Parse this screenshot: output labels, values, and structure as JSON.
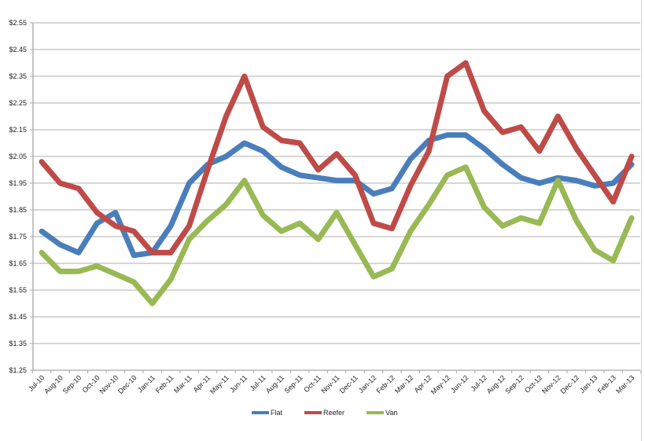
{
  "chart_data": {
    "type": "line",
    "title": "",
    "xlabel": "",
    "ylabel": "",
    "ylim": [
      1.25,
      2.55
    ],
    "ytick_step": 0.1,
    "yticks": [
      "$2.55",
      "$2.45",
      "$2.35",
      "$2.25",
      "$2.15",
      "$2.05",
      "$1.95",
      "$1.85",
      "$1.75",
      "$1.65",
      "$1.55",
      "$1.45",
      "$1.35",
      "$1.25"
    ],
    "grid": true,
    "legend_position": "bottom",
    "categories": [
      "Jul-10",
      "Aug-10",
      "Sep-10",
      "Oct-10",
      "Nov-10",
      "Dec-10",
      "Jan-11",
      "Feb-11",
      "Mar-11",
      "Apr-11",
      "May-11",
      "Jun-11",
      "Jul-11",
      "Aug-11",
      "Sep-11",
      "Oct-11",
      "Nov-11",
      "Dec-11",
      "Jan-12",
      "Feb-12",
      "Mar-12",
      "Apr-12",
      "May-12",
      "Jun-12",
      "Jul-12",
      "Aug-12",
      "Sep-12",
      "Oct-12",
      "Nov-12",
      "Dec-12",
      "Jan-13",
      "Feb-13",
      "Mar-13"
    ],
    "series": [
      {
        "name": "Flat",
        "color": "#4a7ebb",
        "values": [
          1.77,
          1.72,
          1.69,
          1.8,
          1.84,
          1.68,
          1.69,
          1.79,
          1.95,
          2.02,
          2.05,
          2.1,
          2.07,
          2.01,
          1.98,
          1.97,
          1.96,
          1.96,
          1.91,
          1.93,
          2.04,
          2.11,
          2.13,
          2.13,
          2.08,
          2.02,
          1.97,
          1.95,
          1.97,
          1.96,
          1.94,
          1.95,
          2.02
        ]
      },
      {
        "name": "Reefer",
        "color": "#be4b48",
        "values": [
          2.03,
          1.95,
          1.93,
          1.84,
          1.79,
          1.77,
          1.69,
          1.69,
          1.79,
          2.0,
          2.2,
          2.35,
          2.16,
          2.11,
          2.1,
          2.0,
          2.06,
          1.98,
          1.8,
          1.78,
          1.94,
          2.07,
          2.35,
          2.4,
          2.22,
          2.14,
          2.16,
          2.07,
          2.2,
          2.08,
          1.98,
          1.88,
          2.05
        ]
      },
      {
        "name": "Van",
        "color": "#98b954",
        "values": [
          1.69,
          1.62,
          1.62,
          1.64,
          1.61,
          1.58,
          1.5,
          1.59,
          1.74,
          1.81,
          1.87,
          1.96,
          1.83,
          1.77,
          1.8,
          1.74,
          1.84,
          1.72,
          1.6,
          1.63,
          1.77,
          1.87,
          1.98,
          2.01,
          1.86,
          1.79,
          1.82,
          1.8,
          1.96,
          1.81,
          1.7,
          1.66,
          1.82
        ]
      }
    ]
  },
  "legend": {
    "items": [
      {
        "label": "Flat",
        "color": "#4a7ebb"
      },
      {
        "label": "Reefer",
        "color": "#be4b48"
      },
      {
        "label": "Van",
        "color": "#98b954"
      }
    ]
  },
  "style": {
    "gridline_color": "#bfbfbf",
    "axis_color": "#a6a6a6"
  }
}
